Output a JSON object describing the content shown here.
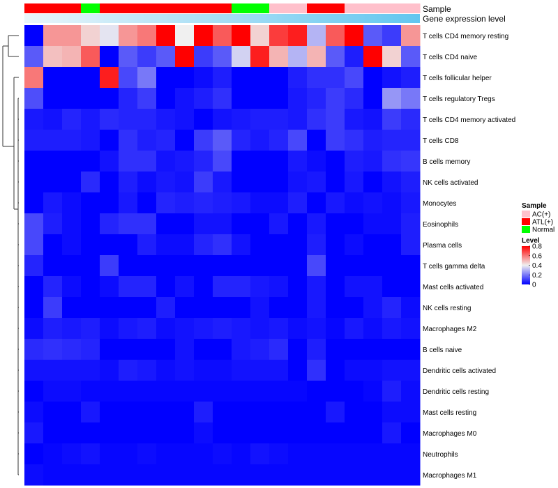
{
  "chart_data": {
    "type": "heatmap",
    "annotation_labels": {
      "sample": "Sample",
      "expression": "Gene expression level"
    },
    "columns": 21,
    "sample_groups": [
      "ATL(+)",
      "ATL(+)",
      "ATL(+)",
      "Normal",
      "ATL(+)",
      "ATL(+)",
      "ATL(+)",
      "ATL(+)",
      "ATL(+)",
      "ATL(+)",
      "ATL(+)",
      "Normal",
      "Normal",
      "AC(+)",
      "AC(+)",
      "ATL(+)",
      "ATL(+)",
      "AC(+)",
      "AC(+)",
      "AC(+)",
      "AC(+)"
    ],
    "expression_gradient": {
      "start": "#eaf6fb",
      "end": "#62c6ef"
    },
    "rows": [
      "T cells CD4 memory resting",
      "T cells CD4 naive",
      "T cells follicular helper",
      "T cells regulatory  Tregs",
      "T cells CD4 memory activated",
      "T cells CD8",
      "B cells memory",
      "NK cells activated",
      "Monocytes",
      "Eosinophils",
      "Plasma cells",
      "T cells gamma delta",
      "Mast cells activated",
      "NK cells resting",
      "Macrophages M2",
      "B cells naive",
      "Dendritic cells activated",
      "Dendritic cells resting",
      "Mast cells resting",
      "Macrophages M0",
      "Neutrophils",
      "Macrophages M1"
    ],
    "values": [
      [
        0.0,
        0.55,
        0.55,
        0.45,
        0.38,
        0.55,
        0.6,
        0.8,
        0.4,
        0.8,
        0.65,
        0.8,
        0.45,
        0.7,
        0.75,
        0.3,
        0.65,
        0.8,
        0.15,
        0.1,
        0.55
      ],
      [
        0.15,
        0.48,
        0.5,
        0.65,
        0.0,
        0.15,
        0.1,
        0.15,
        0.8,
        0.1,
        0.15,
        0.35,
        0.75,
        0.5,
        0.3,
        0.5,
        0.15,
        0.05,
        0.8,
        0.45,
        0.15
      ],
      [
        0.6,
        0.0,
        0.0,
        0.0,
        0.75,
        0.12,
        0.2,
        0.0,
        0.0,
        0.02,
        0.05,
        0.0,
        0.0,
        0.0,
        0.05,
        0.08,
        0.08,
        0.12,
        0.0,
        0.03,
        0.05
      ],
      [
        0.13,
        0.0,
        0.0,
        0.0,
        0.0,
        0.06,
        0.1,
        0.0,
        0.03,
        0.05,
        0.08,
        0.0,
        0.0,
        0.0,
        0.04,
        0.06,
        0.1,
        0.07,
        0.0,
        0.25,
        0.2
      ],
      [
        0.04,
        0.03,
        0.06,
        0.04,
        0.07,
        0.06,
        0.06,
        0.04,
        0.03,
        0.0,
        0.03,
        0.04,
        0.05,
        0.05,
        0.04,
        0.08,
        0.1,
        0.04,
        0.03,
        0.1,
        0.07
      ],
      [
        0.05,
        0.05,
        0.05,
        0.04,
        0.0,
        0.08,
        0.05,
        0.06,
        0.0,
        0.1,
        0.15,
        0.06,
        0.04,
        0.06,
        0.12,
        0.0,
        0.1,
        0.08,
        0.05,
        0.06,
        0.06
      ],
      [
        0.0,
        0.0,
        0.0,
        0.0,
        0.03,
        0.08,
        0.08,
        0.03,
        0.04,
        0.06,
        0.12,
        0.0,
        0.0,
        0.0,
        0.04,
        0.02,
        0.0,
        0.05,
        0.04,
        0.08,
        0.09
      ],
      [
        0.0,
        0.0,
        0.0,
        0.07,
        0.0,
        0.05,
        0.02,
        0.04,
        0.03,
        0.1,
        0.04,
        0.0,
        0.0,
        0.0,
        0.03,
        0.04,
        0.0,
        0.04,
        0.0,
        0.03,
        0.05
      ],
      [
        0.0,
        0.04,
        0.02,
        0.0,
        0.0,
        0.04,
        0.0,
        0.06,
        0.05,
        0.06,
        0.05,
        0.04,
        0.02,
        0.02,
        0.05,
        0.0,
        0.04,
        0.02,
        0.03,
        0.02,
        0.04
      ],
      [
        0.12,
        0.05,
        0.02,
        0.0,
        0.06,
        0.08,
        0.08,
        0.0,
        0.0,
        0.03,
        0.03,
        0.0,
        0.0,
        0.04,
        0.0,
        0.04,
        0.0,
        0.0,
        0.02,
        0.02,
        0.05
      ],
      [
        0.12,
        0.0,
        0.02,
        0.0,
        0.0,
        0.0,
        0.05,
        0.02,
        0.02,
        0.06,
        0.08,
        0.03,
        0.0,
        0.0,
        0.0,
        0.05,
        0.0,
        0.02,
        0.0,
        0.0,
        0.05
      ],
      [
        0.06,
        0.0,
        0.0,
        0.0,
        0.1,
        0.0,
        0.0,
        0.0,
        0.0,
        0.0,
        0.0,
        0.0,
        0.0,
        0.0,
        0.0,
        0.12,
        0.0,
        0.0,
        0.0,
        0.0,
        0.0
      ],
      [
        0.0,
        0.06,
        0.02,
        0.0,
        0.02,
        0.06,
        0.06,
        0.0,
        0.03,
        0.0,
        0.06,
        0.06,
        0.04,
        0.03,
        0.0,
        0.04,
        0.0,
        0.03,
        0.03,
        0.0,
        0.0
      ],
      [
        0.0,
        0.1,
        0.0,
        0.0,
        0.0,
        0.0,
        0.0,
        0.05,
        0.0,
        0.0,
        0.0,
        0.0,
        0.03,
        0.0,
        0.0,
        0.04,
        0.0,
        0.0,
        0.03,
        0.06,
        0.02
      ],
      [
        0.02,
        0.05,
        0.04,
        0.05,
        0.02,
        0.04,
        0.05,
        0.02,
        0.03,
        0.04,
        0.05,
        0.04,
        0.03,
        0.04,
        0.02,
        0.03,
        0.01,
        0.04,
        0.02,
        0.04,
        0.03
      ],
      [
        0.07,
        0.08,
        0.07,
        0.06,
        0.0,
        0.0,
        0.0,
        0.0,
        0.03,
        0.0,
        0.0,
        0.04,
        0.05,
        0.07,
        0.0,
        0.05,
        0.0,
        0.0,
        0.0,
        0.0,
        0.0
      ],
      [
        0.03,
        0.03,
        0.03,
        0.03,
        0.02,
        0.05,
        0.04,
        0.02,
        0.03,
        0.02,
        0.02,
        0.03,
        0.03,
        0.03,
        0.0,
        0.08,
        0.0,
        0.02,
        0.02,
        0.03,
        0.03
      ],
      [
        0.0,
        0.02,
        0.02,
        0.01,
        0.01,
        0.01,
        0.01,
        0.01,
        0.01,
        0.01,
        0.01,
        0.01,
        0.01,
        0.01,
        0.01,
        0.0,
        0.0,
        0.0,
        0.01,
        0.05,
        0.02
      ],
      [
        0.02,
        0.0,
        0.0,
        0.04,
        0.0,
        0.0,
        0.0,
        0.0,
        0.0,
        0.05,
        0.0,
        0.0,
        0.0,
        0.0,
        0.0,
        0.0,
        0.04,
        0.0,
        0.0,
        0.02,
        0.02
      ],
      [
        0.04,
        0.0,
        0.0,
        0.0,
        0.0,
        0.0,
        0.0,
        0.0,
        0.0,
        0.02,
        0.0,
        0.0,
        0.0,
        0.0,
        0.0,
        0.0,
        0.0,
        0.0,
        0.0,
        0.04,
        0.0
      ],
      [
        0.0,
        0.01,
        0.02,
        0.03,
        0.01,
        0.01,
        0.02,
        0.01,
        0.01,
        0.01,
        0.02,
        0.01,
        0.03,
        0.02,
        0.01,
        0.01,
        0.01,
        0.01,
        0.01,
        0.01,
        0.01
      ],
      [
        0.02,
        0.01,
        0.01,
        0.01,
        0.01,
        0.01,
        0.01,
        0.01,
        0.01,
        0.01,
        0.01,
        0.01,
        0.01,
        0.01,
        0.01,
        0.01,
        0.01,
        0.01,
        0.01,
        0.01,
        0.01
      ]
    ],
    "color_scale": {
      "min": 0,
      "mid": 0.4,
      "max": 0.8,
      "low": "#0000ff",
      "middle": "#f0f0f0",
      "high": "#ff0000"
    },
    "legend": {
      "sample_title": "Sample",
      "sample_items": [
        {
          "label": "AC(+)",
          "color": "#ffc0cb"
        },
        {
          "label": "ATL(+)",
          "color": "#ff0000"
        },
        {
          "label": "Normal",
          "color": "#00ff00"
        }
      ],
      "level_title": "Level",
      "level_ticks": [
        0.8,
        0.6,
        0.4,
        0.2,
        0
      ]
    }
  }
}
